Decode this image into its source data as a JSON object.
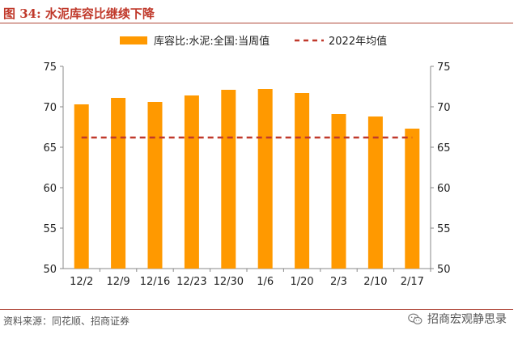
{
  "figure": {
    "title": "图 34:  水泥库容比继续下降",
    "source": "资料来源：同花顺、招商证券",
    "watermark": "招商宏观静思录"
  },
  "chart_data": {
    "type": "bar",
    "categories": [
      "12/2",
      "12/9",
      "12/16",
      "12/23",
      "12/30",
      "1/6",
      "1/20",
      "2/3",
      "2/10",
      "2/17"
    ],
    "series": [
      {
        "name": "库容比:水泥:全国:当周值",
        "values": [
          70.3,
          71.1,
          70.6,
          71.4,
          72.1,
          72.2,
          71.7,
          69.1,
          68.8,
          67.3
        ],
        "color": "#FF9900",
        "kind": "bar"
      },
      {
        "name": "2022年均值",
        "values": [
          66.2,
          66.2,
          66.2,
          66.2,
          66.2,
          66.2,
          66.2,
          66.2,
          66.2,
          66.2
        ],
        "color": "#C0392B",
        "kind": "dashed-line"
      }
    ],
    "ylim": [
      50,
      75
    ],
    "yticks": [
      50,
      55,
      60,
      65,
      70,
      75
    ],
    "secondary_ylim": [
      50,
      75
    ],
    "legend": "top-center",
    "grid": false
  }
}
